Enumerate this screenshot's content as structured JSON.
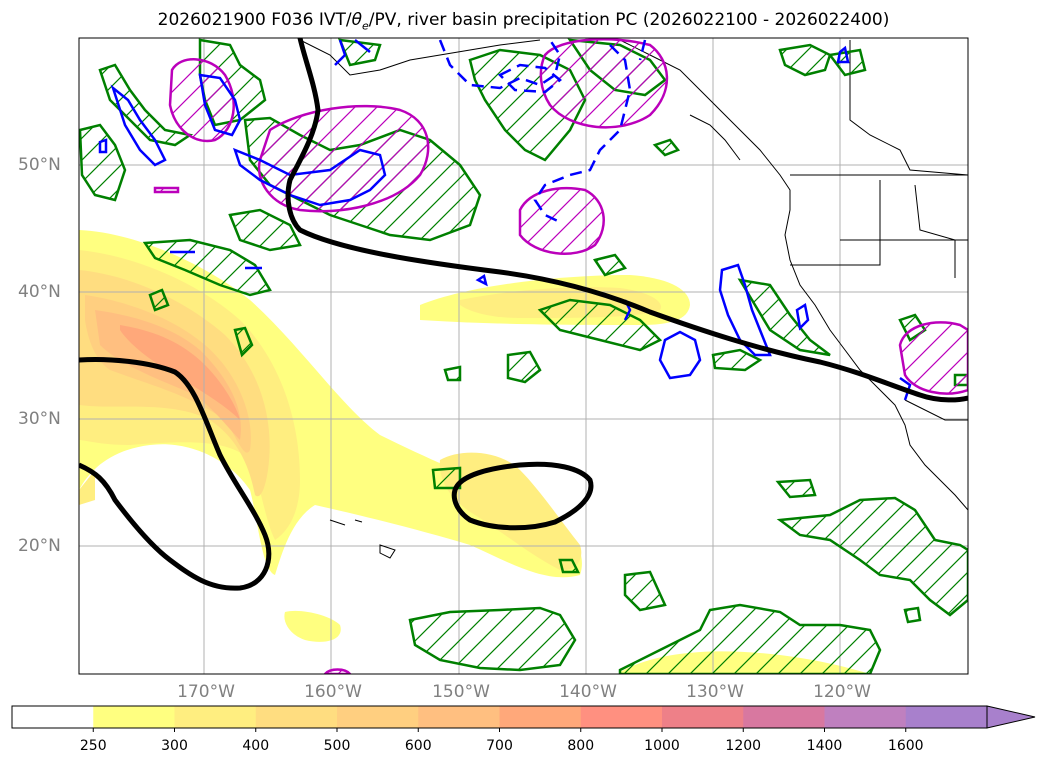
{
  "title": {
    "prefix": "2026021900 F036 IVT/",
    "theta": "θ",
    "theta_sub": "e",
    "suffix": "/PV, river basin precipitation PC (2026022100 - 2026022400)"
  },
  "axes": {
    "lat_labels": [
      "50°N",
      "40°N",
      "30°N",
      "20°N"
    ],
    "lon_labels": [
      "170°W",
      "160°W",
      "150°W",
      "140°W",
      "130°W",
      "120°W"
    ]
  },
  "colorbar": {
    "ticks": [
      "250",
      "300",
      "400",
      "500",
      "600",
      "700",
      "800",
      "1000",
      "1200",
      "1400",
      "1600"
    ],
    "colors": [
      "#ffffff",
      "#ffff80",
      "#ffee80",
      "#ffdd80",
      "#ffcf80",
      "#ffbf80",
      "#ffa87a",
      "#ff9080",
      "#ee8088",
      "#d878a0",
      "#bf80bf",
      "#a880cc"
    ]
  },
  "legend_colors": {
    "ivt_fill": "#ffee80",
    "pv": "#000000",
    "theta_e": "#0000ff",
    "precip_green": "#008000",
    "precip_magenta": "#bb00bb"
  }
}
